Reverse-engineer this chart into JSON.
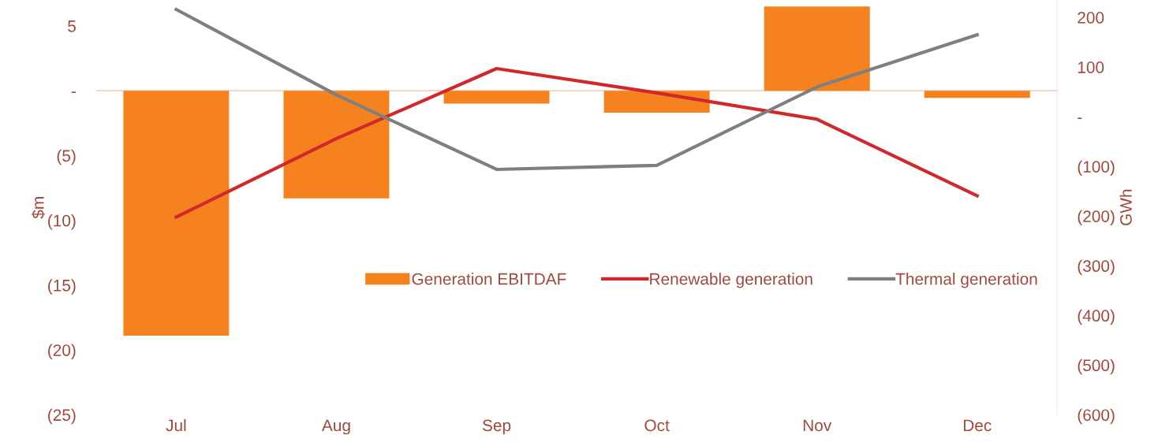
{
  "chart_data": {
    "type": "bar",
    "categories": [
      "Jul",
      "Aug",
      "Sep",
      "Oct",
      "Nov",
      "Dec"
    ],
    "ylabel": "$m",
    "y2label": "GWh",
    "series": [
      {
        "name": "Generation EBITDAF",
        "color": "#f5821f",
        "values": [
          -18.9,
          -8.3,
          -1.0,
          -1.7,
          6.5,
          -0.55
        ]
      },
      {
        "name": "Renewable generation",
        "type": "line",
        "axis": "y2",
        "color": "#d0282b",
        "values": [
          -202,
          -44,
          97,
          48,
          -5,
          -159
        ]
      },
      {
        "name": "Thermal generation",
        "type": "line",
        "axis": "y2",
        "color": "#7f7f7f",
        "values": [
          216,
          44,
          -106,
          -98,
          60,
          165
        ]
      }
    ],
    "ylim": [
      -25,
      7
    ],
    "yticks": [
      {
        "value": 5,
        "label": "5"
      },
      {
        "value": 0,
        "label": "-"
      },
      {
        "value": -5,
        "label": "(5)"
      },
      {
        "value": -10,
        "label": "(10)"
      },
      {
        "value": -15,
        "label": "(15)"
      },
      {
        "value": -20,
        "label": "(20)"
      },
      {
        "value": -25,
        "label": "(25)"
      }
    ],
    "y2lim": [
      -600,
      235
    ],
    "y2ticks": [
      {
        "value": 200,
        "label": "200"
      },
      {
        "value": 100,
        "label": "100"
      },
      {
        "value": 0,
        "label": "-"
      },
      {
        "value": -100,
        "label": "(100)"
      },
      {
        "value": -200,
        "label": "(200)"
      },
      {
        "value": -300,
        "label": "(300)"
      },
      {
        "value": -400,
        "label": "(400)"
      },
      {
        "value": -500,
        "label": "(500)"
      },
      {
        "value": -600,
        "label": "(600)"
      }
    ],
    "ref_lines": [
      {
        "axis": "y",
        "value": 0,
        "color": "#f2cfc4"
      }
    ],
    "legend": "bottom",
    "grid": false
  }
}
